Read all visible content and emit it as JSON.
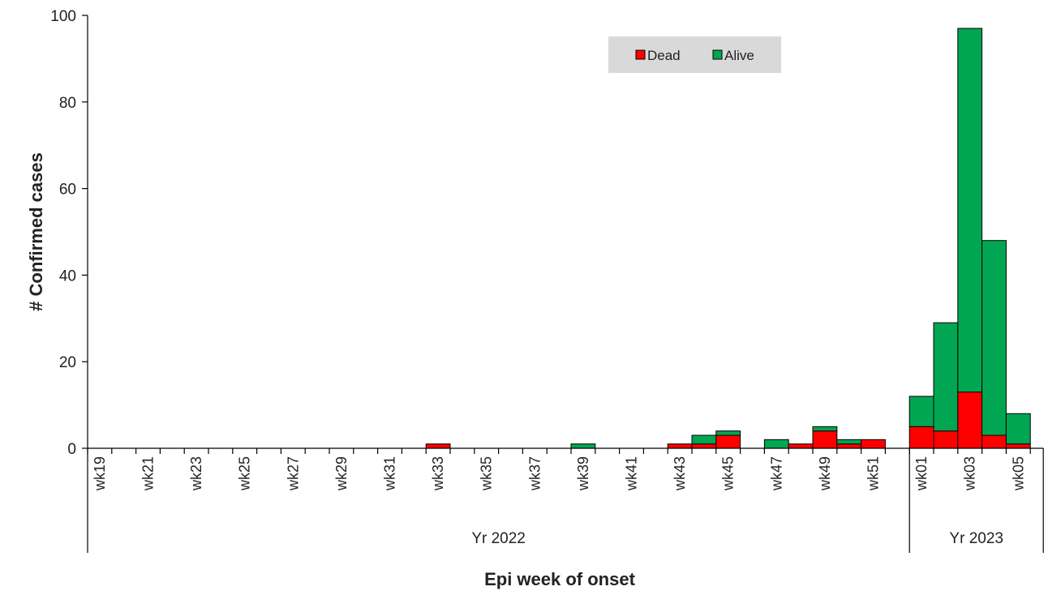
{
  "chart_data": {
    "type": "bar",
    "stacked": true,
    "xlabel": "Epi week of onset",
    "ylabel": "# Confirmed cases",
    "ylim": [
      0,
      100
    ],
    "yticks": [
      0,
      20,
      40,
      60,
      80,
      100
    ],
    "grid": false,
    "legend_position": "top-center",
    "categories": [
      "wk19",
      "wk20",
      "wk21",
      "wk22",
      "wk23",
      "wk24",
      "wk25",
      "wk26",
      "wk27",
      "wk28",
      "wk29",
      "wk30",
      "wk31",
      "wk32",
      "wk33",
      "wk34",
      "wk35",
      "wk36",
      "wk37",
      "wk38",
      "wk39",
      "wk40",
      "wk41",
      "wk42",
      "wk43",
      "wk44",
      "wk45",
      "wk46",
      "wk47",
      "wk48",
      "wk49",
      "wk50",
      "wk51",
      "wk52",
      "wk01",
      "wk02",
      "wk03",
      "wk04",
      "wk05"
    ],
    "tick_labels": [
      "wk19",
      "",
      "wk21",
      "",
      "wk23",
      "",
      "wk25",
      "",
      "wk27",
      "",
      "wk29",
      "",
      "wk31",
      "",
      "wk33",
      "",
      "wk35",
      "",
      "wk37",
      "",
      "wk39",
      "",
      "wk41",
      "",
      "wk43",
      "",
      "wk45",
      "",
      "wk47",
      "",
      "wk49",
      "",
      "wk51",
      "",
      "wk01",
      "",
      "wk03",
      "",
      "wk05"
    ],
    "groups": [
      {
        "label": "Yr 2022",
        "count": 34
      },
      {
        "label": "Yr 2023",
        "count": 5
      }
    ],
    "series": [
      {
        "name": "Dead",
        "color": "#ff0000",
        "values": [
          0,
          0,
          0,
          0,
          0,
          0,
          0,
          0,
          0,
          0,
          0,
          0,
          0,
          0,
          1,
          0,
          0,
          0,
          0,
          0,
          0,
          0,
          0,
          0,
          1,
          1,
          3,
          0,
          0,
          1,
          4,
          1,
          2,
          0,
          5,
          4,
          13,
          3,
          1
        ]
      },
      {
        "name": "Alive",
        "color": "#00a651",
        "values": [
          0,
          0,
          0,
          0,
          0,
          0,
          0,
          0,
          0,
          0,
          0,
          0,
          0,
          0,
          0,
          0,
          0,
          0,
          0,
          0,
          1,
          0,
          0,
          0,
          0,
          2,
          1,
          0,
          2,
          0,
          1,
          1,
          0,
          0,
          7,
          25,
          84,
          45,
          7
        ]
      }
    ]
  }
}
